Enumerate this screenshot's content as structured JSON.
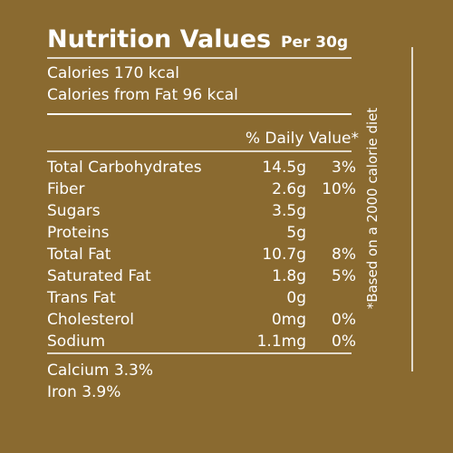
{
  "label": {
    "title": "Nutrition Values",
    "serving": "Per 30g",
    "calories": [
      "Calories 170 kcal",
      "Calories from Fat 96 kcal"
    ],
    "dv_header": "% Daily Value*",
    "rows": [
      {
        "name": "Total Carbohydrates",
        "amount": "14.5g",
        "dv": "3%"
      },
      {
        "name": "Fiber",
        "amount": "2.6g",
        "dv": "10%"
      },
      {
        "name": "Sugars",
        "amount": "3.5g"
      },
      {
        "name": "Proteins",
        "amount": "5g"
      },
      {
        "name": "Total Fat",
        "amount": "10.7g",
        "dv": "8%"
      },
      {
        "name": "Saturated Fat",
        "amount": "1.8g",
        "dv": "5%"
      },
      {
        "name": "Trans Fat",
        "amount": "0g"
      },
      {
        "name": "Cholesterol",
        "amount": "0mg",
        "dv": "0%"
      },
      {
        "name": "Sodium",
        "amount": "1.1mg",
        "dv": "0%"
      }
    ],
    "minerals": [
      "Calcium 3.3%",
      "Iron 3.9%"
    ],
    "footnote": "*Based on a 2000 calorie diet"
  }
}
